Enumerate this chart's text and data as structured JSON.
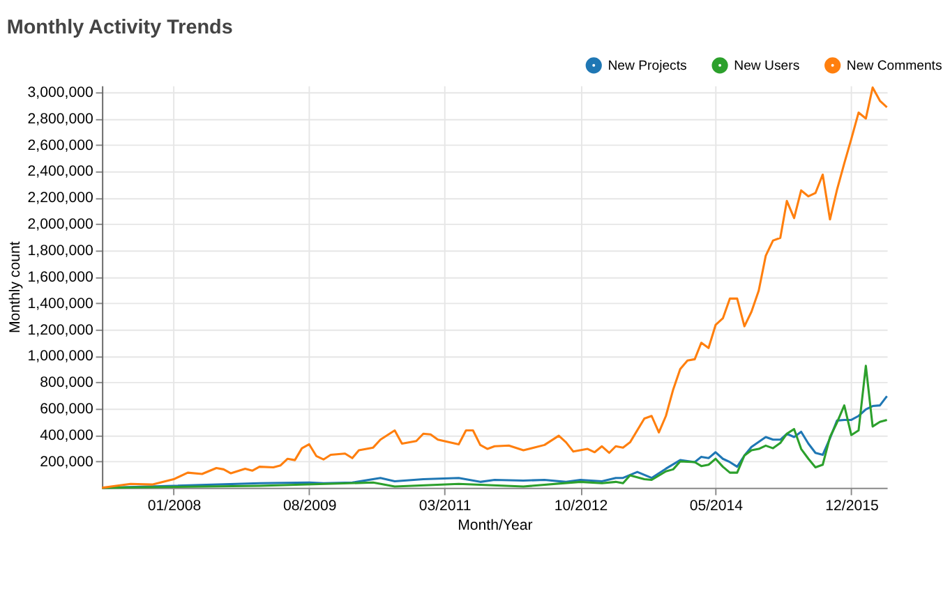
{
  "chart_data": {
    "type": "line",
    "title": "Monthly Activity Trends",
    "xlabel": "Month/Year",
    "ylabel": "Monthly count",
    "xlim": [
      "2007-03",
      "2016-05"
    ],
    "xticks": [
      {
        "value": "2008-01",
        "label": "01/2008"
      },
      {
        "value": "2009-08",
        "label": "08/2009"
      },
      {
        "value": "2011-03",
        "label": "03/2011"
      },
      {
        "value": "2012-10",
        "label": "10/2012"
      },
      {
        "value": "2014-05",
        "label": "05/2014"
      },
      {
        "value": "2015-12",
        "label": "12/2015"
      }
    ],
    "ylim": [
      0,
      3050000
    ],
    "yticks": [
      {
        "value": 200000,
        "label": "200,000"
      },
      {
        "value": 400000,
        "label": "400,000"
      },
      {
        "value": 600000,
        "label": "600,000"
      },
      {
        "value": 800000,
        "label": "800,000"
      },
      {
        "value": 1000000,
        "label": "1,000,000"
      },
      {
        "value": 1200000,
        "label": "1,200,000"
      },
      {
        "value": 1400000,
        "label": "1,400,000"
      },
      {
        "value": 1600000,
        "label": "1,600,000"
      },
      {
        "value": 1800000,
        "label": "1,800,000"
      },
      {
        "value": 2000000,
        "label": "2,000,000"
      },
      {
        "value": 2200000,
        "label": "2,200,000"
      },
      {
        "value": 2400000,
        "label": "2,400,000"
      },
      {
        "value": 2600000,
        "label": "2,600,000"
      },
      {
        "value": 2800000,
        "label": "2,800,000"
      },
      {
        "value": 3000000,
        "label": "3,000,000"
      }
    ],
    "grid": true,
    "legend": "top right",
    "marker": "none",
    "line_style": "solid",
    "series": [
      {
        "name": "New Projects",
        "color": "#1f77b4",
        "x": [
          "2007-03",
          "2008-01",
          "2009-01",
          "2009-08",
          "2009-10",
          "2010-02",
          "2010-06",
          "2010-08",
          "2010-12",
          "2011-05",
          "2011-08",
          "2011-10",
          "2012-02",
          "2012-05",
          "2012-08",
          "2012-10",
          "2013-01",
          "2013-03",
          "2013-04",
          "2013-06",
          "2013-08",
          "2013-10",
          "2013-12",
          "2014-02",
          "2014-03",
          "2014-04",
          "2014-05",
          "2014-06",
          "2014-07",
          "2014-08",
          "2014-09",
          "2014-10",
          "2014-12",
          "2015-01",
          "2015-02",
          "2015-03",
          "2015-04",
          "2015-05",
          "2015-06",
          "2015-07",
          "2015-08",
          "2015-09",
          "2015-10",
          "2015-11",
          "2015-12",
          "2016-01",
          "2016-02",
          "2016-03",
          "2016-04",
          "2016-05"
        ],
        "values": [
          0,
          15000,
          35000,
          40000,
          35000,
          40000,
          75000,
          50000,
          65000,
          75000,
          45000,
          60000,
          55000,
          60000,
          45000,
          60000,
          50000,
          75000,
          75000,
          120000,
          75000,
          145000,
          210000,
          195000,
          235000,
          225000,
          270000,
          220000,
          195000,
          160000,
          245000,
          310000,
          385000,
          365000,
          365000,
          410000,
          385000,
          425000,
          335000,
          265000,
          250000,
          375000,
          510000,
          515000,
          515000,
          545000,
          595000,
          620000,
          625000,
          695000
        ]
      },
      {
        "name": "New Users",
        "color": "#2ca02c",
        "x": [
          "2007-03",
          "2009-01",
          "2010-05",
          "2010-08",
          "2011-05",
          "2012-02",
          "2012-10",
          "2013-01",
          "2013-03",
          "2013-04",
          "2013-05",
          "2013-07",
          "2013-08",
          "2013-10",
          "2013-11",
          "2013-12",
          "2014-02",
          "2014-03",
          "2014-04",
          "2014-05",
          "2014-06",
          "2014-07",
          "2014-08",
          "2014-09",
          "2014-10",
          "2014-11",
          "2014-12",
          "2015-01",
          "2015-02",
          "2015-03",
          "2015-04",
          "2015-05",
          "2015-06",
          "2015-07",
          "2015-08",
          "2015-09",
          "2015-10",
          "2015-11",
          "2015-12",
          "2016-01",
          "2016-02",
          "2016-03",
          "2016-04",
          "2016-05"
        ],
        "values": [
          0,
          15000,
          40000,
          10000,
          30000,
          10000,
          45000,
          35000,
          45000,
          35000,
          95000,
          65000,
          60000,
          125000,
          140000,
          200000,
          195000,
          165000,
          175000,
          220000,
          160000,
          115000,
          115000,
          245000,
          285000,
          295000,
          320000,
          300000,
          340000,
          410000,
          445000,
          295000,
          220000,
          155000,
          175000,
          385000,
          495000,
          625000,
          400000,
          435000,
          925000,
          465000,
          500000,
          515000
        ]
      },
      {
        "name": "New Comments",
        "color": "#ff7f0e",
        "x": [
          "2007-03",
          "2007-05",
          "2007-07",
          "2007-10",
          "2008-01",
          "2008-03",
          "2008-05",
          "2008-07",
          "2008-08",
          "2008-09",
          "2008-11",
          "2008-12",
          "2009-01",
          "2009-03",
          "2009-04",
          "2009-05",
          "2009-06",
          "2009-07",
          "2009-08",
          "2009-09",
          "2009-10",
          "2009-11",
          "2010-01",
          "2010-02",
          "2010-03",
          "2010-05",
          "2010-06",
          "2010-08",
          "2010-09",
          "2010-11",
          "2010-12",
          "2011-01",
          "2011-02",
          "2011-05",
          "2011-06",
          "2011-07",
          "2011-08",
          "2011-09",
          "2011-10",
          "2011-12",
          "2012-02",
          "2012-05",
          "2012-07",
          "2012-08",
          "2012-09",
          "2012-11",
          "2012-12",
          "2013-01",
          "2013-02",
          "2013-03",
          "2013-04",
          "2013-05",
          "2013-07",
          "2013-08",
          "2013-09",
          "2013-10",
          "2013-11",
          "2013-12",
          "2014-01",
          "2014-02",
          "2014-03",
          "2014-04",
          "2014-05",
          "2014-06",
          "2014-07",
          "2014-08",
          "2014-09",
          "2014-10",
          "2014-11",
          "2014-12",
          "2015-01",
          "2015-02",
          "2015-03",
          "2015-04",
          "2015-05",
          "2015-06",
          "2015-07",
          "2015-08",
          "2015-09",
          "2015-10",
          "2015-11",
          "2015-12",
          "2016-01",
          "2016-02",
          "2016-03",
          "2016-04",
          "2016-05"
        ],
        "values": [
          0,
          15000,
          30000,
          25000,
          65000,
          115000,
          105000,
          150000,
          140000,
          110000,
          145000,
          130000,
          160000,
          155000,
          170000,
          220000,
          210000,
          300000,
          330000,
          240000,
          215000,
          250000,
          260000,
          225000,
          285000,
          305000,
          365000,
          435000,
          335000,
          355000,
          410000,
          405000,
          365000,
          330000,
          435000,
          435000,
          325000,
          295000,
          315000,
          320000,
          285000,
          325000,
          395000,
          345000,
          275000,
          295000,
          270000,
          315000,
          265000,
          315000,
          305000,
          345000,
          525000,
          545000,
          420000,
          545000,
          745000,
          900000,
          965000,
          975000,
          1100000,
          1060000,
          1235000,
          1285000,
          1435000,
          1435000,
          1225000,
          1335000,
          1495000,
          1760000,
          1875000,
          1895000,
          2175000,
          2045000,
          2255000,
          2210000,
          2235000,
          2375000,
          2035000,
          2260000,
          2460000,
          2645000,
          2845000,
          2800000,
          3035000,
          2935000,
          2885000
        ]
      }
    ]
  }
}
